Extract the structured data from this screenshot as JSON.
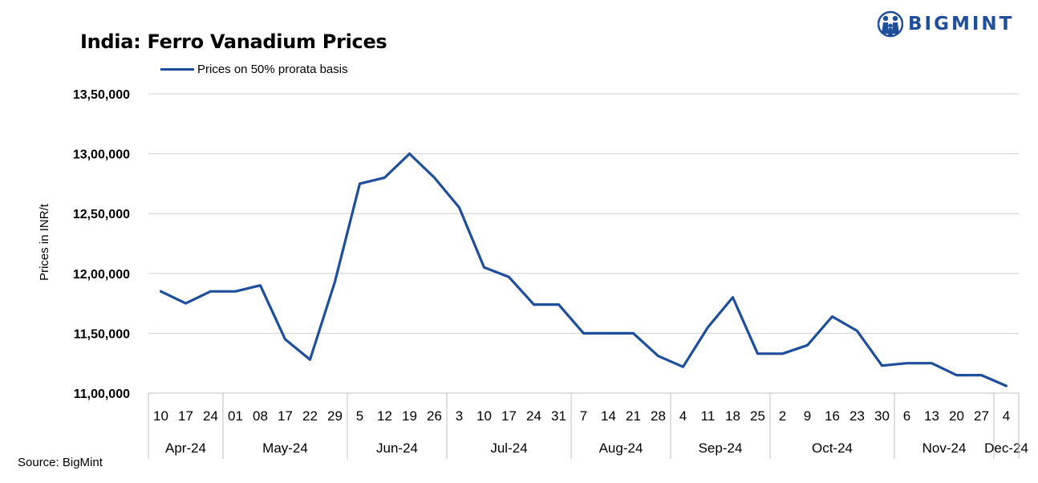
{
  "brand": {
    "name": "BIGMINT",
    "color": "#1f4e9a",
    "logo_icon": "people-logo-icon"
  },
  "source": "Source: BigMint",
  "chart_data": {
    "type": "line",
    "title": "India: Ferro Vanadium Prices",
    "ylabel": "Prices in INR/t",
    "xlabel": "",
    "ylim": [
      1100000,
      1350000
    ],
    "y_ticks": [
      1100000,
      1150000,
      1200000,
      1250000,
      1300000,
      1350000
    ],
    "y_tick_labels": [
      "11,00,000",
      "11,50,000",
      "12,00,000",
      "12,50,000",
      "13,00,000",
      "13,50,000"
    ],
    "grid": true,
    "legend_position": "top-left",
    "x": [
      "10",
      "17",
      "24",
      "01",
      "08",
      "17",
      "22",
      "29",
      "5",
      "12",
      "19",
      "26",
      "3",
      "10",
      "17",
      "24",
      "31",
      "7",
      "14",
      "21",
      "28",
      "4",
      "11",
      "18",
      "25",
      "2",
      "9",
      "16",
      "23",
      "30",
      "6",
      "13",
      "20",
      "27",
      "4"
    ],
    "month_groups": [
      {
        "label": "Apr-24",
        "count": 3
      },
      {
        "label": "May-24",
        "count": 5
      },
      {
        "label": "Jun-24",
        "count": 4
      },
      {
        "label": "Jul-24",
        "count": 5
      },
      {
        "label": "Aug-24",
        "count": 4
      },
      {
        "label": "Sep-24",
        "count": 4
      },
      {
        "label": "Oct-24",
        "count": 5
      },
      {
        "label": "Nov-24",
        "count": 4
      },
      {
        "label": "Dec-24",
        "count": 1
      }
    ],
    "series": [
      {
        "name": "Prices on 50% prorata basis",
        "color": "#1f4e9a",
        "values": [
          1185000,
          1175000,
          1185000,
          1185000,
          1190000,
          1145000,
          1128000,
          1193000,
          1275000,
          1280000,
          1300000,
          1280000,
          1255000,
          1205000,
          1197000,
          1174000,
          1174000,
          1150000,
          1150000,
          1150000,
          1131000,
          1122000,
          1155000,
          1180000,
          1133000,
          1133000,
          1140000,
          1164000,
          1152000,
          1123000,
          1125000,
          1125000,
          1115000,
          1115000,
          1106000
        ]
      }
    ]
  }
}
